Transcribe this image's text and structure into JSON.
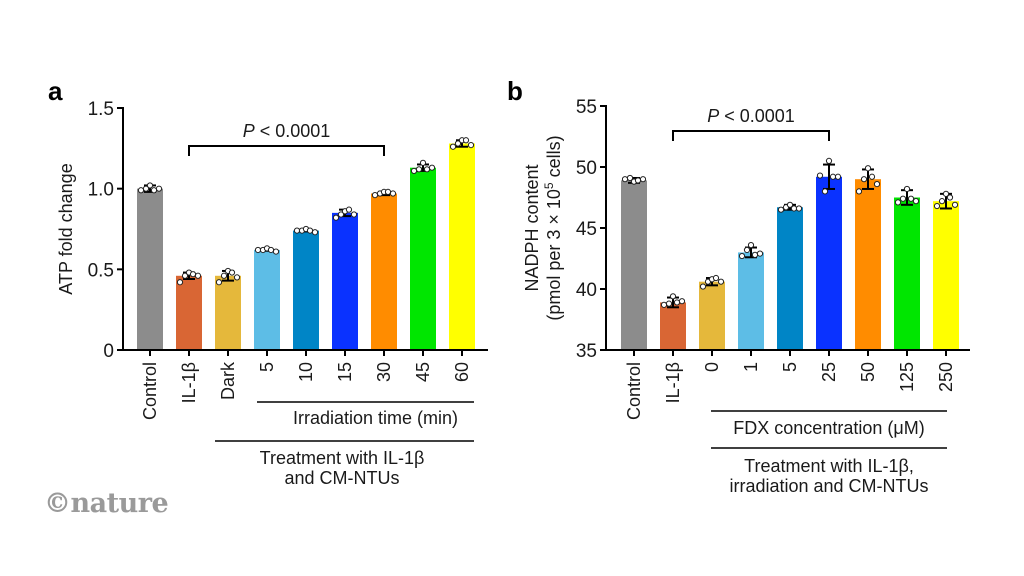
{
  "watermark": "©nature",
  "chart_data": [
    {
      "panel": "a",
      "type": "bar",
      "ylabel": "ATP fold change",
      "xlabel": "",
      "ylim": [
        0,
        1.5
      ],
      "yticks": [
        "0",
        "0.5",
        "1.0",
        "1.5"
      ],
      "ytick_values": [
        0,
        0.5,
        1.0,
        1.5
      ],
      "categories": [
        "Control",
        "IL-1β",
        "Dark",
        "5",
        "10",
        "15",
        "30",
        "45",
        "60"
      ],
      "values": [
        1.0,
        0.46,
        0.46,
        0.62,
        0.74,
        0.85,
        0.97,
        1.13,
        1.28
      ],
      "errors": [
        0.02,
        0.02,
        0.03,
        0.005,
        0.005,
        0.02,
        0.01,
        0.02,
        0.02
      ],
      "points": [
        [
          0.99,
          1.0,
          1.02,
          0.99,
          1.0
        ],
        [
          0.42,
          0.46,
          0.48,
          0.47,
          0.46
        ],
        [
          0.42,
          0.46,
          0.49,
          0.48,
          0.45
        ],
        [
          0.62,
          0.62,
          0.63,
          0.62,
          0.61
        ],
        [
          0.74,
          0.74,
          0.75,
          0.74,
          0.73
        ],
        [
          0.82,
          0.84,
          0.86,
          0.87,
          0.84
        ],
        [
          0.96,
          0.97,
          0.98,
          0.98,
          0.97
        ],
        [
          1.11,
          1.12,
          1.16,
          1.12,
          1.13
        ],
        [
          1.26,
          1.28,
          1.3,
          1.3,
          1.27
        ]
      ],
      "colors": [
        "#8c8c8c",
        "#d96634",
        "#e5b83b",
        "#5dbde6",
        "#0085c6",
        "#0a32ff",
        "#ff8c00",
        "#00e600",
        "#ffff00"
      ],
      "bracket": {
        "from": 1,
        "to": 6,
        "label_italic": "P",
        "label_rest": " < 0.0001"
      },
      "group_labels": [
        {
          "text": "Irradiation time (min)",
          "from": 3,
          "to": 8
        },
        {
          "text": "Treatment with IL-1β",
          "text2": "and CM-NTUs",
          "from": 2,
          "to": 8
        }
      ]
    },
    {
      "panel": "b",
      "type": "bar",
      "ylabel": "NADPH content",
      "ylabel2_prefix": "(pmol per 3 × 10",
      "ylabel2_sup": "5",
      "ylabel2_suffix": " cells)",
      "xlabel": "",
      "ylim": [
        35,
        55
      ],
      "yticks": [
        "35",
        "40",
        "45",
        "50",
        "55"
      ],
      "ytick_values": [
        35,
        40,
        45,
        50,
        55
      ],
      "categories": [
        "Control",
        "IL-1β",
        "0",
        "1",
        "5",
        "25",
        "50",
        "125",
        "250"
      ],
      "values": [
        48.9,
        38.9,
        40.6,
        43.0,
        46.7,
        49.2,
        49.0,
        47.5,
        47.2
      ],
      "errors": [
        0.2,
        0.4,
        0.3,
        0.4,
        0.2,
        1.0,
        0.8,
        0.6,
        0.6
      ],
      "points": [
        [
          49.0,
          49.1,
          48.8,
          48.9,
          49.0
        ],
        [
          38.7,
          38.8,
          39.4,
          38.9,
          39.0
        ],
        [
          40.2,
          40.6,
          40.8,
          40.9,
          40.6
        ],
        [
          42.7,
          43.2,
          43.6,
          42.8,
          42.9
        ],
        [
          46.5,
          46.7,
          46.9,
          46.6,
          46.6
        ],
        [
          49.3,
          48.0,
          50.5,
          49.2,
          49.2
        ],
        [
          48.0,
          49.0,
          49.9,
          49.2,
          48.6
        ],
        [
          47.1,
          47.4,
          48.2,
          47.4,
          47.2
        ],
        [
          46.8,
          47.2,
          47.8,
          47.5,
          46.9
        ]
      ],
      "colors": [
        "#8c8c8c",
        "#d96634",
        "#e5b83b",
        "#5dbde6",
        "#0085c6",
        "#0a32ff",
        "#ff8c00",
        "#00e600",
        "#ffff00"
      ],
      "bracket": {
        "from": 1,
        "to": 5,
        "label_italic": "P",
        "label_rest": " < 0.0001"
      },
      "group_labels": [
        {
          "text": "FDX concentration (μM)",
          "from": 2,
          "to": 8
        },
        {
          "text": "Treatment with IL-1β,",
          "text2": "irradiation and CM-NTUs",
          "from": 2,
          "to": 8
        }
      ]
    }
  ]
}
